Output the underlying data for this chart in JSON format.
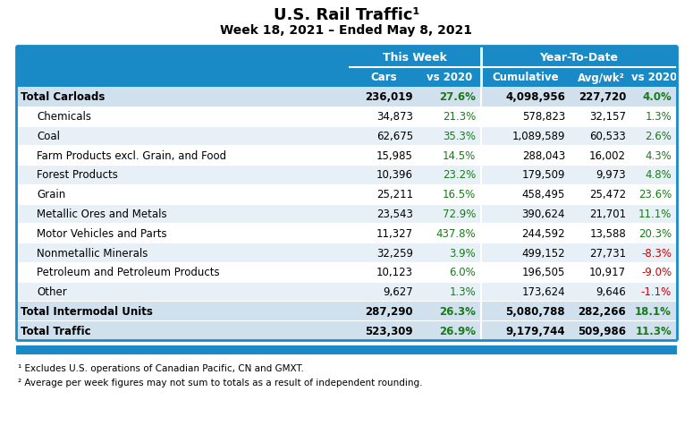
{
  "title": "U.S. Rail Traffic¹",
  "subtitle": "Week 18, 2021 – Ended May 8, 2021",
  "header1": "This Week",
  "header2": "Year-To-Date",
  "rows": [
    {
      "label": "Total Carloads",
      "bold": true,
      "indent": false,
      "cars": "236,019",
      "vs2020_tw": "27.6%",
      "vs2020_tw_color": "green",
      "cumulative": "4,098,956",
      "avgwk": "227,720",
      "vs2020_ytd": "4.0%",
      "vs2020_ytd_color": "green"
    },
    {
      "label": "Chemicals",
      "bold": false,
      "indent": true,
      "cars": "34,873",
      "vs2020_tw": "21.3%",
      "vs2020_tw_color": "green",
      "cumulative": "578,823",
      "avgwk": "32,157",
      "vs2020_ytd": "1.3%",
      "vs2020_ytd_color": "green"
    },
    {
      "label": "Coal",
      "bold": false,
      "indent": true,
      "cars": "62,675",
      "vs2020_tw": "35.3%",
      "vs2020_tw_color": "green",
      "cumulative": "1,089,589",
      "avgwk": "60,533",
      "vs2020_ytd": "2.6%",
      "vs2020_ytd_color": "green"
    },
    {
      "label": "Farm Products excl. Grain, and Food",
      "bold": false,
      "indent": true,
      "cars": "15,985",
      "vs2020_tw": "14.5%",
      "vs2020_tw_color": "green",
      "cumulative": "288,043",
      "avgwk": "16,002",
      "vs2020_ytd": "4.3%",
      "vs2020_ytd_color": "green"
    },
    {
      "label": "Forest Products",
      "bold": false,
      "indent": true,
      "cars": "10,396",
      "vs2020_tw": "23.2%",
      "vs2020_tw_color": "green",
      "cumulative": "179,509",
      "avgwk": "9,973",
      "vs2020_ytd": "4.8%",
      "vs2020_ytd_color": "green"
    },
    {
      "label": "Grain",
      "bold": false,
      "indent": true,
      "cars": "25,211",
      "vs2020_tw": "16.5%",
      "vs2020_tw_color": "green",
      "cumulative": "458,495",
      "avgwk": "25,472",
      "vs2020_ytd": "23.6%",
      "vs2020_ytd_color": "green"
    },
    {
      "label": "Metallic Ores and Metals",
      "bold": false,
      "indent": true,
      "cars": "23,543",
      "vs2020_tw": "72.9%",
      "vs2020_tw_color": "green",
      "cumulative": "390,624",
      "avgwk": "21,701",
      "vs2020_ytd": "11.1%",
      "vs2020_ytd_color": "green"
    },
    {
      "label": "Motor Vehicles and Parts",
      "bold": false,
      "indent": true,
      "cars": "11,327",
      "vs2020_tw": "437.8%",
      "vs2020_tw_color": "green",
      "cumulative": "244,592",
      "avgwk": "13,588",
      "vs2020_ytd": "20.3%",
      "vs2020_ytd_color": "green"
    },
    {
      "label": "Nonmetallic Minerals",
      "bold": false,
      "indent": true,
      "cars": "32,259",
      "vs2020_tw": "3.9%",
      "vs2020_tw_color": "green",
      "cumulative": "499,152",
      "avgwk": "27,731",
      "vs2020_ytd": "-8.3%",
      "vs2020_ytd_color": "red"
    },
    {
      "label": "Petroleum and Petroleum Products",
      "bold": false,
      "indent": true,
      "cars": "10,123",
      "vs2020_tw": "6.0%",
      "vs2020_tw_color": "green",
      "cumulative": "196,505",
      "avgwk": "10,917",
      "vs2020_ytd": "-9.0%",
      "vs2020_ytd_color": "red"
    },
    {
      "label": "Other",
      "bold": false,
      "indent": true,
      "cars": "9,627",
      "vs2020_tw": "1.3%",
      "vs2020_tw_color": "green",
      "cumulative": "173,624",
      "avgwk": "9,646",
      "vs2020_ytd": "-1.1%",
      "vs2020_ytd_color": "red"
    },
    {
      "label": "Total Intermodal Units",
      "bold": true,
      "indent": false,
      "cars": "287,290",
      "vs2020_tw": "26.3%",
      "vs2020_tw_color": "green",
      "cumulative": "5,080,788",
      "avgwk": "282,266",
      "vs2020_ytd": "18.1%",
      "vs2020_ytd_color": "green"
    },
    {
      "label": "Total Traffic",
      "bold": true,
      "indent": false,
      "cars": "523,309",
      "vs2020_tw": "26.9%",
      "vs2020_tw_color": "green",
      "cumulative": "9,179,744",
      "avgwk": "509,986",
      "vs2020_ytd": "11.3%",
      "vs2020_ytd_color": "green"
    }
  ],
  "footnote1": "¹ Excludes U.S. operations of Canadian Pacific, CN and GMXT.",
  "footnote2": "² Average per week figures may not sum to totals as a result of independent rounding.",
  "header_bg": "#1a8ac6",
  "green_color": "#1a7a1a",
  "red_color": "#cc0000",
  "row_bg_light": "#e8f0f7",
  "row_bg_white": "#ffffff",
  "bold_row_bg": "#d0e0ed",
  "bottom_bar_color": "#1a8ac6",
  "figw": 7.75,
  "figh": 4.77,
  "dpi": 100
}
